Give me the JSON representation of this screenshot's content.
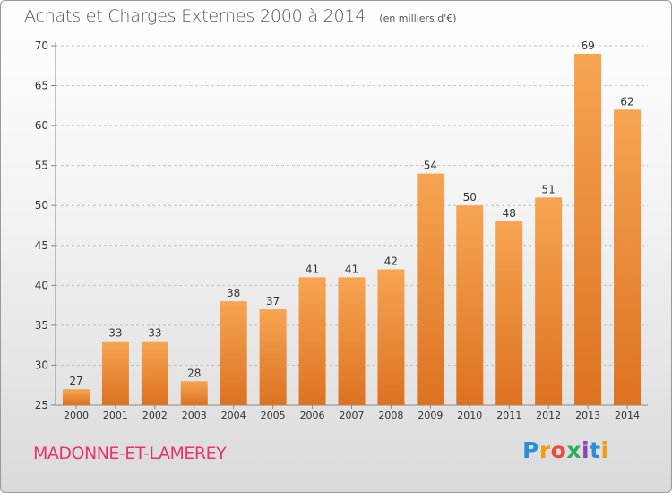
{
  "title": "Achats et Charges Externes 2000 à 2014",
  "unit_note": "(en milliers d'€)",
  "commune": "MADONNE-ET-LAMEREY",
  "brand": {
    "letters": [
      "P",
      "r",
      "o",
      "x",
      "i",
      "t",
      "i"
    ],
    "colors": [
      "#2a8fd6",
      "#f39c12",
      "#e74c3c",
      "#27ae60",
      "#8e44ad",
      "#2a8fd6",
      "#f39c12"
    ]
  },
  "colors": {
    "bar_top": "#f6a552",
    "bar_bottom": "#dd7220",
    "title": "#555555",
    "commune": "#e8336f"
  },
  "chart_data": {
    "type": "bar",
    "title": "Achats et Charges Externes 2000 à 2014",
    "categories": [
      "2000",
      "2001",
      "2002",
      "2003",
      "2004",
      "2005",
      "2006",
      "2007",
      "2008",
      "2009",
      "2010",
      "2011",
      "2012",
      "2013",
      "2014"
    ],
    "values": [
      27,
      33,
      33,
      28,
      38,
      37,
      41,
      41,
      42,
      54,
      50,
      48,
      51,
      69,
      62
    ],
    "ylim": [
      25,
      70
    ],
    "yticks": [
      25,
      30,
      35,
      40,
      45,
      50,
      55,
      60,
      65,
      70
    ],
    "grid": true,
    "data_labels": true
  }
}
